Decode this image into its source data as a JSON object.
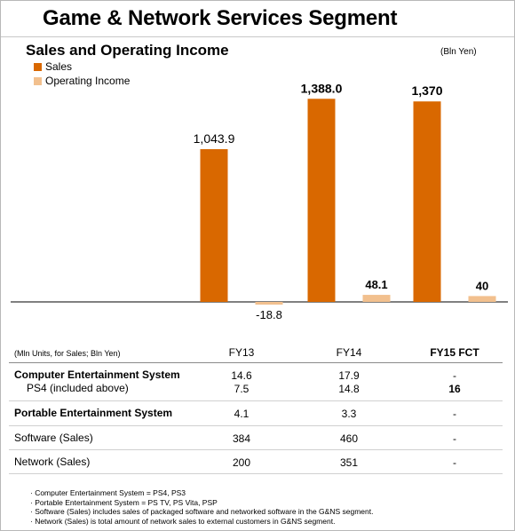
{
  "header": {
    "segment_title": "Game & Network Services Segment",
    "chart_title": "Sales and Operating Income",
    "unit": "(Bln Yen)"
  },
  "colors": {
    "sales": "#D96800",
    "operating_income": "#F2C08E"
  },
  "chart_data": {
    "type": "bar",
    "title": "Sales and Operating Income",
    "unit": "(Bln Yen)",
    "categories": [
      "FY13",
      "FY14",
      "FY15 FCT"
    ],
    "series": [
      {
        "name": "Sales",
        "values": [
          1043.9,
          1388.0,
          1370
        ],
        "labels": [
          "1,043.9",
          "1,388.0",
          "1,370"
        ]
      },
      {
        "name": "Operating Income",
        "values": [
          -18.8,
          48.1,
          40
        ],
        "labels": [
          "-18.8",
          "48.1",
          "40"
        ]
      }
    ],
    "legend_position": "top-left",
    "grid": false
  },
  "table": {
    "note": "(Mln Units, for Sales; Bln Yen)",
    "columns": [
      "FY13",
      "FY14",
      "FY15 FCT"
    ],
    "rows": [
      {
        "label": "Computer Entertainment System",
        "values": [
          "14.6",
          "17.9",
          "-"
        ]
      },
      {
        "label": "PS4 (included above)",
        "values": [
          "7.5",
          "14.8",
          "16"
        ]
      },
      {
        "label": "Portable Entertainment System",
        "values": [
          "4.1",
          "3.3",
          "-"
        ]
      },
      {
        "label": "Software (Sales)",
        "values": [
          "384",
          "460",
          "-"
        ]
      },
      {
        "label": "Network (Sales)",
        "values": [
          "200",
          "351",
          "-"
        ]
      }
    ]
  },
  "footnotes": [
    "· Computer Entertainment System = PS4, PS3",
    "· Portable Entertainment System = PS TV, PS Vita, PSP",
    "· Software (Sales) includes sales of packaged software and networked software in the G&NS segment.",
    "· Network (Sales) is total amount of network sales to external customers in G&NS segment."
  ]
}
